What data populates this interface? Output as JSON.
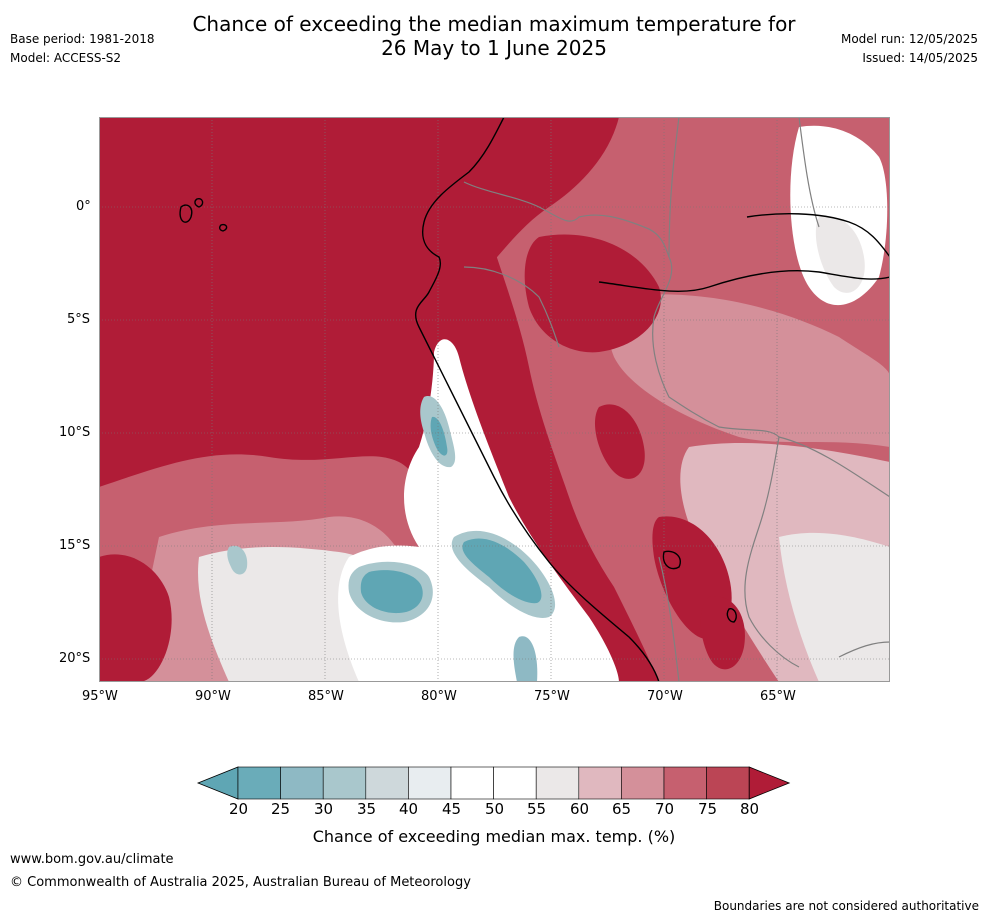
{
  "header": {
    "base_period": "Base period: 1981-2018",
    "model": "Model: ACCESS-S2",
    "title_line1": "Chance of exceeding the median maximum temperature for",
    "title_line2": "26 May to 1 June 2025",
    "model_run": "Model run: 12/05/2025",
    "issued": "Issued: 14/05/2025"
  },
  "map": {
    "lat_labels": [
      "0°",
      "5°S",
      "10°S",
      "15°S",
      "20°S"
    ],
    "lon_labels": [
      "95°W",
      "90°W",
      "85°W",
      "80°W",
      "75°W",
      "70°W",
      "65°W"
    ],
    "ocean_dominant_category": "75-80+",
    "coastal_band_category": "20-50"
  },
  "colorbar": {
    "ticks": [
      "20",
      "25",
      "30",
      "35",
      "40",
      "45",
      "50",
      "55",
      "60",
      "65",
      "70",
      "75",
      "80"
    ],
    "colors": [
      "#5fa6b4",
      "#6aacb9",
      "#8eb9c4",
      "#a9c7cc",
      "#ced8db",
      "#e8edf0",
      "#ffffff",
      "#ffffff",
      "#ebe8e8",
      "#e0b8bf",
      "#d4909a",
      "#c6606f",
      "#bb4555",
      "#b01c37"
    ],
    "label": "Chance of exceeding median max. temp. (%)"
  },
  "footer": {
    "url": "www.bom.gov.au/climate",
    "copyright": "© Commonwealth of Australia 2025, Australian Bureau of Meteorology",
    "disclaimer": "Boundaries are not considered authoritative"
  }
}
